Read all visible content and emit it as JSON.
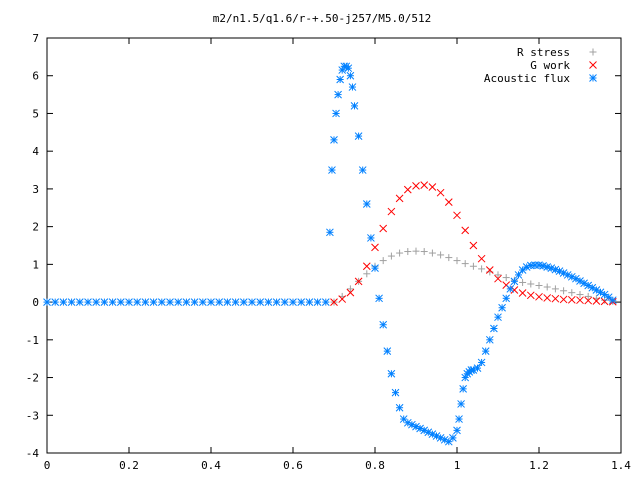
{
  "chart_data": {
    "type": "scatter",
    "title": "m2/n1.5/q1.6/r-+.50-j257/M5.0/512",
    "xlabel": "",
    "ylabel": "",
    "xlim": [
      0,
      1.4
    ],
    "ylim": [
      -4,
      7
    ],
    "grid": false,
    "legend_position": "top-right",
    "xticks": [
      0,
      0.2,
      0.4,
      0.6,
      0.8,
      1,
      1.2,
      1.4
    ],
    "xtick_labels": [
      "0",
      "0.2",
      "0.4",
      "0.6",
      "0.8",
      "1",
      "1.2",
      "1.4"
    ],
    "yticks": [
      -4,
      -3,
      -2,
      -1,
      0,
      1,
      2,
      3,
      4,
      5,
      6,
      7
    ],
    "ytick_labels": [
      "-4",
      "-3",
      "-2",
      "-1",
      "0",
      "1",
      "2",
      "3",
      "4",
      "5",
      "6",
      "7"
    ],
    "series": [
      {
        "name": "R stress",
        "marker": "plus",
        "color": "#a0a0a0",
        "x": [
          0.7,
          0.72,
          0.74,
          0.76,
          0.78,
          0.8,
          0.82,
          0.84,
          0.86,
          0.88,
          0.9,
          0.92,
          0.94,
          0.96,
          0.98,
          1.0,
          1.02,
          1.04,
          1.06,
          1.08,
          1.1,
          1.12,
          1.14,
          1.16,
          1.18,
          1.2,
          1.22,
          1.24,
          1.26,
          1.28,
          1.3,
          1.32,
          1.34,
          1.36,
          1.38
        ],
        "y": [
          0.0,
          0.15,
          0.35,
          0.55,
          0.75,
          0.95,
          1.1,
          1.22,
          1.3,
          1.34,
          1.35,
          1.34,
          1.3,
          1.25,
          1.18,
          1.1,
          1.02,
          0.95,
          0.88,
          0.8,
          0.72,
          0.65,
          0.58,
          0.52,
          0.48,
          0.44,
          0.4,
          0.35,
          0.3,
          0.25,
          0.2,
          0.15,
          0.1,
          0.05,
          0.02
        ]
      },
      {
        "name": "G work",
        "marker": "cross",
        "color": "#ff0000",
        "x": [
          0.7,
          0.72,
          0.74,
          0.76,
          0.78,
          0.8,
          0.82,
          0.84,
          0.86,
          0.88,
          0.9,
          0.92,
          0.94,
          0.96,
          0.98,
          1.0,
          1.02,
          1.04,
          1.06,
          1.08,
          1.1,
          1.12,
          1.14,
          1.16,
          1.18,
          1.2,
          1.22,
          1.24,
          1.26,
          1.28,
          1.3,
          1.32,
          1.34,
          1.36,
          1.38
        ],
        "y": [
          0.0,
          0.08,
          0.25,
          0.55,
          0.95,
          1.45,
          1.95,
          2.4,
          2.75,
          2.98,
          3.08,
          3.1,
          3.05,
          2.9,
          2.65,
          2.3,
          1.9,
          1.5,
          1.15,
          0.85,
          0.62,
          0.45,
          0.32,
          0.24,
          0.18,
          0.14,
          0.11,
          0.09,
          0.07,
          0.06,
          0.05,
          0.04,
          0.03,
          0.02,
          0.01
        ]
      },
      {
        "name": "Acoustic flux",
        "marker": "star",
        "color": "#0080ff",
        "x": [
          0.0,
          0.02,
          0.04,
          0.06,
          0.08,
          0.1,
          0.12,
          0.14,
          0.16,
          0.18,
          0.2,
          0.22,
          0.24,
          0.26,
          0.28,
          0.3,
          0.32,
          0.34,
          0.36,
          0.38,
          0.4,
          0.42,
          0.44,
          0.46,
          0.48,
          0.5,
          0.52,
          0.54,
          0.56,
          0.58,
          0.6,
          0.62,
          0.64,
          0.66,
          0.68,
          0.69,
          0.695,
          0.7,
          0.705,
          0.71,
          0.715,
          0.72,
          0.725,
          0.73,
          0.735,
          0.74,
          0.745,
          0.75,
          0.76,
          0.77,
          0.78,
          0.79,
          0.8,
          0.81,
          0.82,
          0.83,
          0.84,
          0.85,
          0.86,
          0.87,
          0.88,
          0.89,
          0.9,
          0.91,
          0.92,
          0.93,
          0.94,
          0.95,
          0.96,
          0.97,
          0.98,
          0.99,
          1.0,
          1.005,
          1.01,
          1.015,
          1.02,
          1.025,
          1.03,
          1.035,
          1.04,
          1.05,
          1.06,
          1.07,
          1.08,
          1.09,
          1.1,
          1.11,
          1.12,
          1.13,
          1.14,
          1.15,
          1.16,
          1.17,
          1.18,
          1.19,
          1.2,
          1.21,
          1.22,
          1.23,
          1.24,
          1.25,
          1.26,
          1.27,
          1.28,
          1.29,
          1.3,
          1.31,
          1.32,
          1.33,
          1.34,
          1.35,
          1.36,
          1.37,
          1.38
        ],
        "y": [
          0,
          0,
          0,
          0,
          0,
          0,
          0,
          0,
          0,
          0,
          0,
          0,
          0,
          0,
          0,
          0,
          0,
          0,
          0,
          0,
          0,
          0,
          0,
          0,
          0,
          0,
          0,
          0,
          0,
          0,
          0,
          0,
          0,
          0,
          0,
          1.85,
          3.5,
          4.3,
          5.0,
          5.5,
          5.9,
          6.15,
          6.25,
          6.25,
          6.2,
          6.0,
          5.7,
          5.2,
          4.4,
          3.5,
          2.6,
          1.7,
          0.9,
          0.1,
          -0.6,
          -1.3,
          -1.9,
          -2.4,
          -2.8,
          -3.1,
          -3.2,
          -3.25,
          -3.3,
          -3.35,
          -3.4,
          -3.45,
          -3.5,
          -3.55,
          -3.6,
          -3.65,
          -3.7,
          -3.6,
          -3.4,
          -3.1,
          -2.7,
          -2.3,
          -2.0,
          -1.9,
          -1.85,
          -1.8,
          -1.8,
          -1.75,
          -1.6,
          -1.3,
          -1.0,
          -0.7,
          -0.4,
          -0.15,
          0.1,
          0.35,
          0.55,
          0.72,
          0.85,
          0.93,
          0.97,
          0.98,
          0.98,
          0.96,
          0.93,
          0.9,
          0.86,
          0.82,
          0.77,
          0.72,
          0.67,
          0.62,
          0.56,
          0.5,
          0.44,
          0.38,
          0.32,
          0.26,
          0.2,
          0.13,
          0.05
        ]
      }
    ]
  }
}
